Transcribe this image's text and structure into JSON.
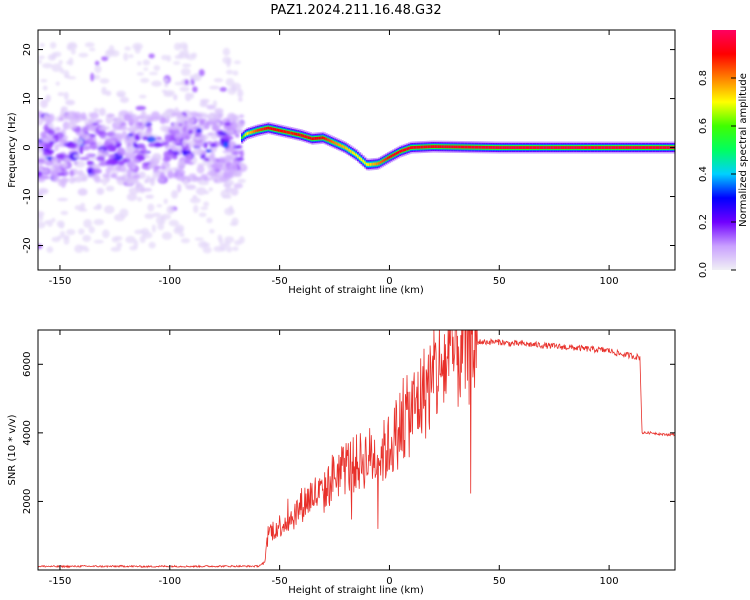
{
  "title": "PAZ1.2024.211.16.48.G32",
  "chart_data": [
    {
      "type": "heatmap",
      "xlabel": "Height of straight line (km)",
      "ylabel": "Frequency (Hz)",
      "xlim": [
        -160,
        130
      ],
      "ylim": [
        -25,
        24
      ],
      "xticks": [
        -150,
        -100,
        -50,
        0,
        50,
        100
      ],
      "yticks": [
        -20,
        -10,
        0,
        10,
        20
      ],
      "colorbar": {
        "label": "Normalized spectral amplitude",
        "range": [
          0,
          1
        ],
        "ticks": [
          0.0,
          0.2,
          0.4,
          0.6,
          0.8
        ],
        "colormap": [
          "#f0f0f5",
          "#c9a0ff",
          "#7000ff",
          "#0000ff",
          "#00d0ff",
          "#00ff60",
          "#40ff00",
          "#ffff00",
          "#ff8000",
          "#ff0000",
          "#ff0060"
        ]
      },
      "noise_region": {
        "x_range": [
          -160,
          -67
        ],
        "freq_spread_hz": 20
      },
      "ridge": {
        "x": [
          -160,
          -140,
          -120,
          -100,
          -80,
          -67,
          -65,
          -60,
          -55,
          -50,
          -45,
          -40,
          -35,
          -30,
          -25,
          -20,
          -15,
          -10,
          -5,
          0,
          5,
          10,
          20,
          50,
          80,
          100,
          130
        ],
        "freq_hz": [
          0,
          1,
          0,
          0.5,
          0,
          2,
          2.8,
          3.5,
          4,
          3.5,
          3,
          2.5,
          1.8,
          2,
          1,
          0,
          -1.5,
          -3.5,
          -3.3,
          -2,
          -0.8,
          0,
          0.2,
          0,
          0,
          0,
          0
        ],
        "amplitude": [
          0.22,
          0.22,
          0.22,
          0.22,
          0.22,
          0.55,
          0.7,
          0.85,
          0.9,
          0.9,
          0.88,
          0.92,
          0.9,
          0.9,
          0.8,
          0.75,
          0.7,
          0.7,
          0.8,
          0.9,
          0.92,
          0.92,
          0.92,
          0.95,
          0.95,
          0.95,
          0.95
        ]
      }
    },
    {
      "type": "line",
      "xlabel": "Height of straight line (km)",
      "ylabel": "SNR (10 * v/v)",
      "xlim": [
        -160,
        130
      ],
      "ylim": [
        0,
        7000
      ],
      "xticks": [
        -150,
        -100,
        -50,
        0,
        50,
        100
      ],
      "yticks": [
        2000,
        4000,
        6000
      ],
      "color": "#e8302a",
      "series": [
        {
          "x": [
            -160,
            -150,
            -140,
            -130,
            -120,
            -110,
            -100,
            -90,
            -80,
            -70,
            -60,
            -57,
            -55,
            -50,
            -45,
            -40,
            -35,
            -30,
            -25,
            -20,
            -15,
            -10,
            -5,
            0,
            5,
            10,
            15,
            20,
            25,
            30,
            35,
            40,
            45,
            50,
            55,
            60,
            70,
            80,
            90,
            100,
            105,
            110,
            114,
            115,
            120,
            125,
            130
          ],
          "y": [
            110,
            100,
            110,
            105,
            110,
            100,
            110,
            105,
            110,
            110,
            110,
            200,
            1100,
            1300,
            1500,
            1900,
            2200,
            2200,
            2800,
            3000,
            3100,
            3300,
            3300,
            3600,
            4200,
            4600,
            5100,
            5600,
            6000,
            6300,
            6550,
            6650,
            6650,
            6650,
            6600,
            6600,
            6550,
            6500,
            6450,
            6400,
            6300,
            6250,
            6200,
            4000,
            4000,
            3950,
            3950
          ]
        }
      ]
    }
  ]
}
